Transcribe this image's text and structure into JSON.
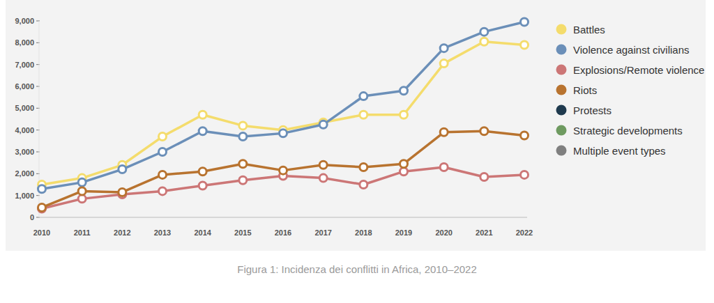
{
  "chart_data": {
    "type": "line",
    "title": "Figura 1: Incidenza dei conflitti in Africa, 2010–2022",
    "categories": [
      "2010",
      "2011",
      "2012",
      "2013",
      "2014",
      "2015",
      "2016",
      "2017",
      "2018",
      "2019",
      "2020",
      "2021",
      "2022"
    ],
    "series": [
      {
        "name": "Battles",
        "color": "#f4dc6c",
        "values": [
          1500,
          1800,
          2400,
          3700,
          4700,
          4200,
          4000,
          4350,
          4700,
          4700,
          7050,
          8050,
          7900
        ]
      },
      {
        "name": "Violence against civilians",
        "color": "#6b8fb8",
        "values": [
          1300,
          1600,
          2200,
          3000,
          3950,
          3700,
          3850,
          4250,
          5550,
          5800,
          7750,
          8500,
          8950
        ]
      },
      {
        "name": "Explosions/Remote violence",
        "color": "#cc7676",
        "values": [
          400,
          850,
          1050,
          1200,
          1450,
          1700,
          1900,
          1800,
          1500,
          2100,
          2300,
          1850,
          1950
        ]
      },
      {
        "name": "Riots",
        "color": "#b8732f",
        "values": [
          450,
          1200,
          1150,
          1950,
          2100,
          2450,
          2150,
          2400,
          2300,
          2450,
          3900,
          3950,
          3750
        ]
      },
      {
        "name": "Protests",
        "color": "#1f3a4e",
        "values": [
          null,
          null,
          null,
          null,
          null,
          null,
          null,
          null,
          null,
          null,
          null,
          null,
          null
        ]
      },
      {
        "name": "Strategic developments",
        "color": "#6e9a60",
        "values": [
          null,
          null,
          null,
          null,
          null,
          null,
          null,
          null,
          null,
          null,
          null,
          null,
          null
        ]
      },
      {
        "name": "Multiple event types",
        "color": "#7f7f7f",
        "values": [
          null,
          null,
          null,
          null,
          null,
          null,
          null,
          null,
          null,
          null,
          null,
          null,
          null
        ]
      }
    ],
    "ylim": [
      0,
      9000
    ],
    "yticks": [
      0,
      {
        "value": 1000,
        "label": "1,000"
      },
      {
        "value": 2000,
        "label": "2,000"
      },
      {
        "value": 3000,
        "label": "3,000"
      },
      {
        "value": 4000,
        "label": "4,000"
      },
      {
        "value": 5000,
        "label": "5,000"
      },
      {
        "value": 6000,
        "label": "6,000"
      },
      {
        "value": 7000,
        "label": "7,000"
      },
      {
        "value": 8000,
        "label": "8,000"
      },
      {
        "value": 9000,
        "label": "9,000"
      }
    ],
    "grid": false,
    "marker": "circle",
    "legend": "right"
  }
}
